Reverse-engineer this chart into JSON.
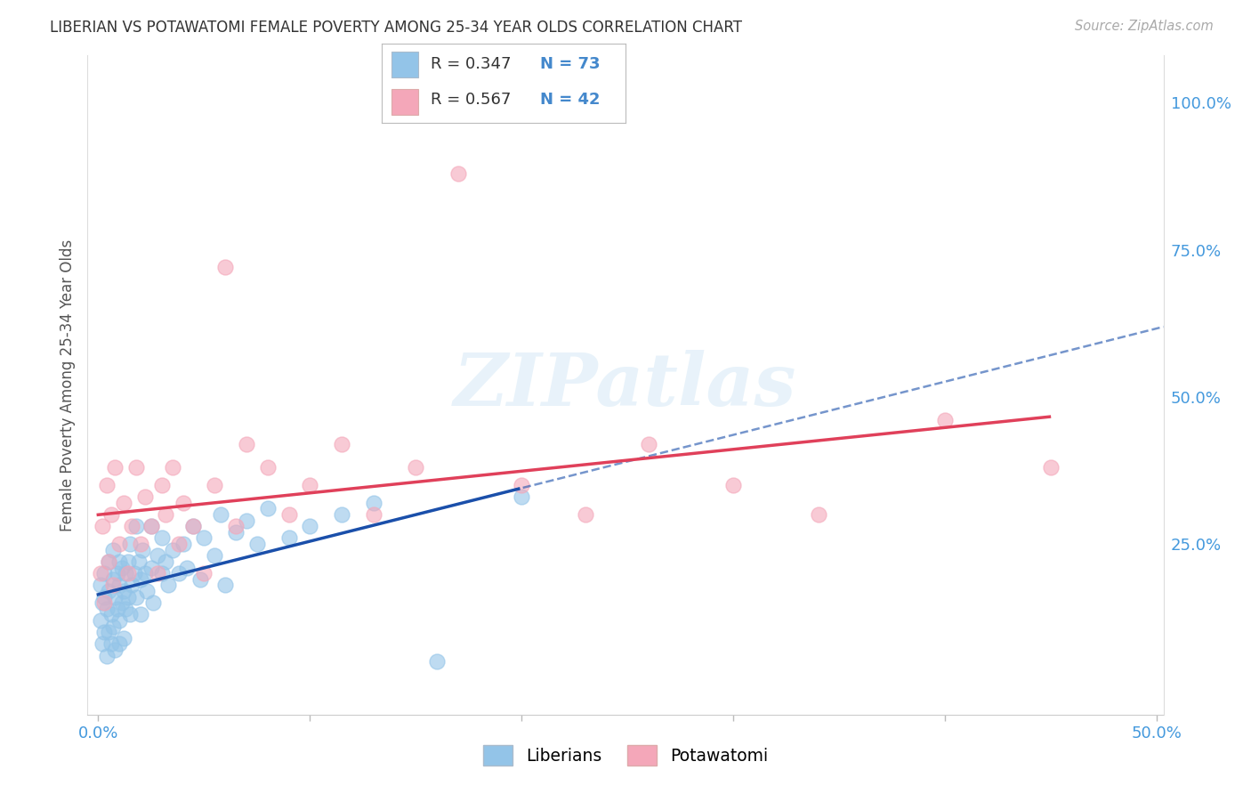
{
  "title": "LIBERIAN VS POTAWATOMI FEMALE POVERTY AMONG 25-34 YEAR OLDS CORRELATION CHART",
  "source": "Source: ZipAtlas.com",
  "ylabel": "Female Poverty Among 25-34 Year Olds",
  "liberian_color": "#93c4e8",
  "potawatomi_color": "#f4a7b9",
  "liberian_line_color": "#1a4faa",
  "potawatomi_line_color": "#e0405a",
  "R_liberian": 0.347,
  "N_liberian": 73,
  "R_potawatomi": 0.567,
  "N_potawatomi": 42,
  "background_color": "#ffffff",
  "grid_color": "#cccccc",
  "watermark": "ZIPatlas",
  "title_color": "#333333",
  "axis_label_color": "#4499dd",
  "ylabel_color": "#555555",
  "legend_text_color": "#4488cc",
  "legend_label_color": "#333333"
}
